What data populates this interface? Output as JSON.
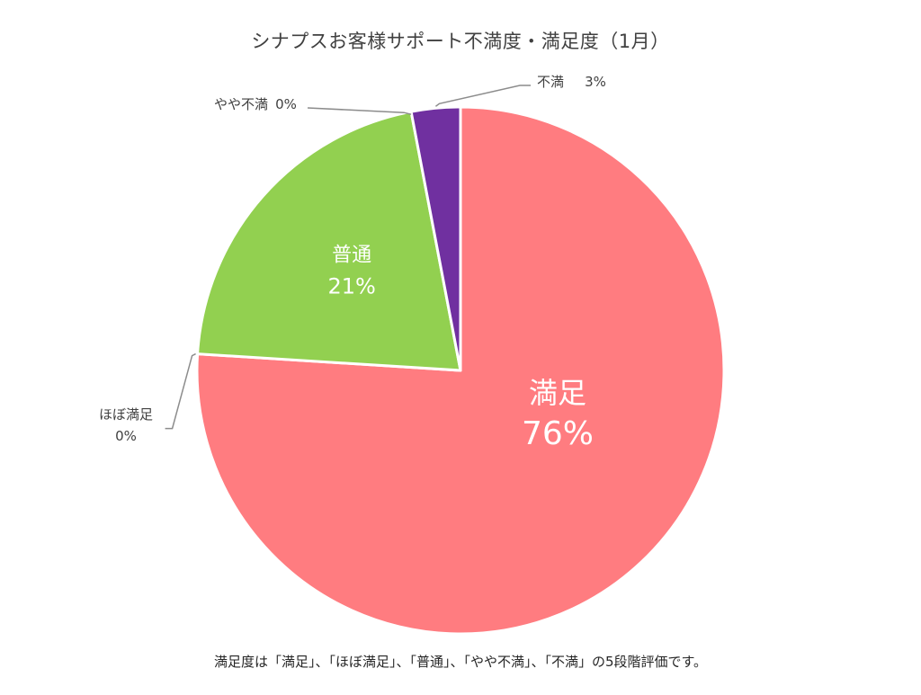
{
  "chart_data": {
    "type": "pie",
    "title": "シナプスお客様サポート不満度・満足度（1月）",
    "note": "満足度は「満足」、「ほぼ満足」、「普通」、「やや不満」、「不満」の5段階評価です。",
    "start": "12 o'clock",
    "direction": "clockwise",
    "slices": [
      {
        "name": "満足",
        "value": 76,
        "percent_label": "76%",
        "color": "#FF7C80",
        "label_position": "inside"
      },
      {
        "name": "ほぼ満足",
        "value": 0,
        "percent_label": "0%",
        "color": "#FF7C80",
        "label_position": "outside-left"
      },
      {
        "name": "普通",
        "value": 21,
        "percent_label": "21%",
        "color": "#92D050",
        "label_position": "inside"
      },
      {
        "name": "やや不満",
        "value": 0,
        "percent_label": "0%",
        "color": "#7030A0",
        "label_position": "outside-top-left"
      },
      {
        "name": "不満",
        "value": 3,
        "percent_label": "3%",
        "color": "#7030A0",
        "label_position": "outside-top-right"
      }
    ]
  }
}
